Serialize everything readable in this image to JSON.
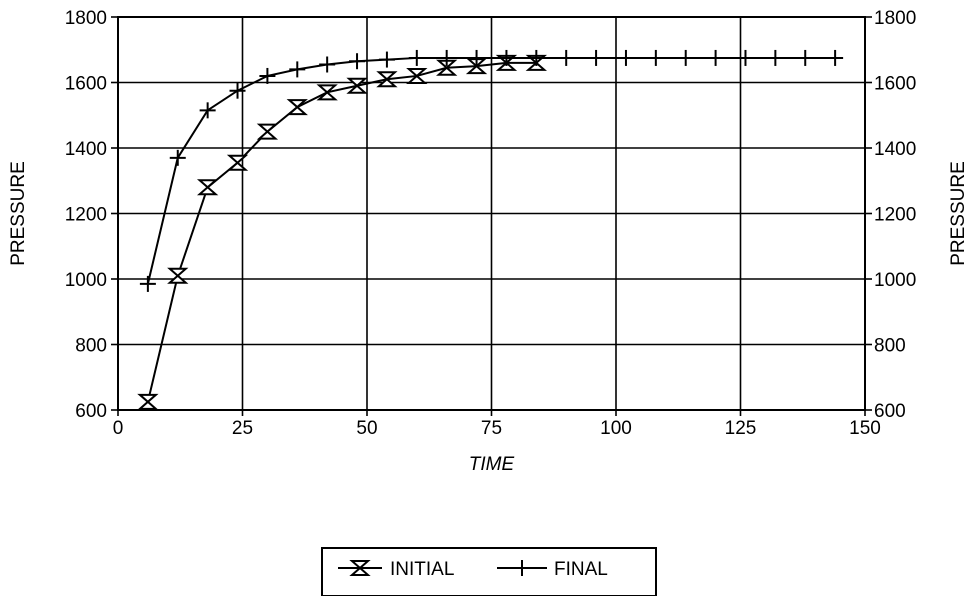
{
  "chart_data": {
    "type": "line",
    "title": "",
    "xlabel": "TIME",
    "ylabel": "PRESSURE",
    "ylabel_right": "PRESSURE",
    "xlim": [
      0,
      150
    ],
    "ylim": [
      600,
      1800
    ],
    "x_ticks": [
      "0",
      "25",
      "50",
      "75",
      "100",
      "125",
      "150"
    ],
    "y_ticks": [
      "600",
      "800",
      "1000",
      "1200",
      "1400",
      "1600",
      "1800"
    ],
    "y_ticks_right": [
      "600",
      "800",
      "1000",
      "1200",
      "1400",
      "1600",
      "1800"
    ],
    "grid": true,
    "legend_position": "bottom-center",
    "series": [
      {
        "name": "INITIAL",
        "marker": "hourglass-x",
        "x": [
          6,
          12,
          18,
          24,
          30,
          36,
          42,
          48,
          54,
          60,
          66,
          72,
          78,
          84
        ],
        "y": [
          625,
          1010,
          1280,
          1355,
          1450,
          1525,
          1570,
          1590,
          1610,
          1620,
          1645,
          1650,
          1660,
          1660
        ]
      },
      {
        "name": "FINAL",
        "marker": "plus",
        "x": [
          6,
          12,
          18,
          24,
          30,
          36,
          42,
          48,
          54,
          60,
          66,
          72,
          78,
          84,
          90,
          96,
          102,
          108,
          114,
          120,
          126,
          132,
          138,
          144
        ],
        "y": [
          985,
          1370,
          1515,
          1575,
          1620,
          1640,
          1655,
          1665,
          1670,
          1675,
          1675,
          1675,
          1675,
          1675,
          1675,
          1675,
          1675,
          1675,
          1675,
          1675,
          1675,
          1675,
          1675,
          1675
        ]
      }
    ]
  }
}
